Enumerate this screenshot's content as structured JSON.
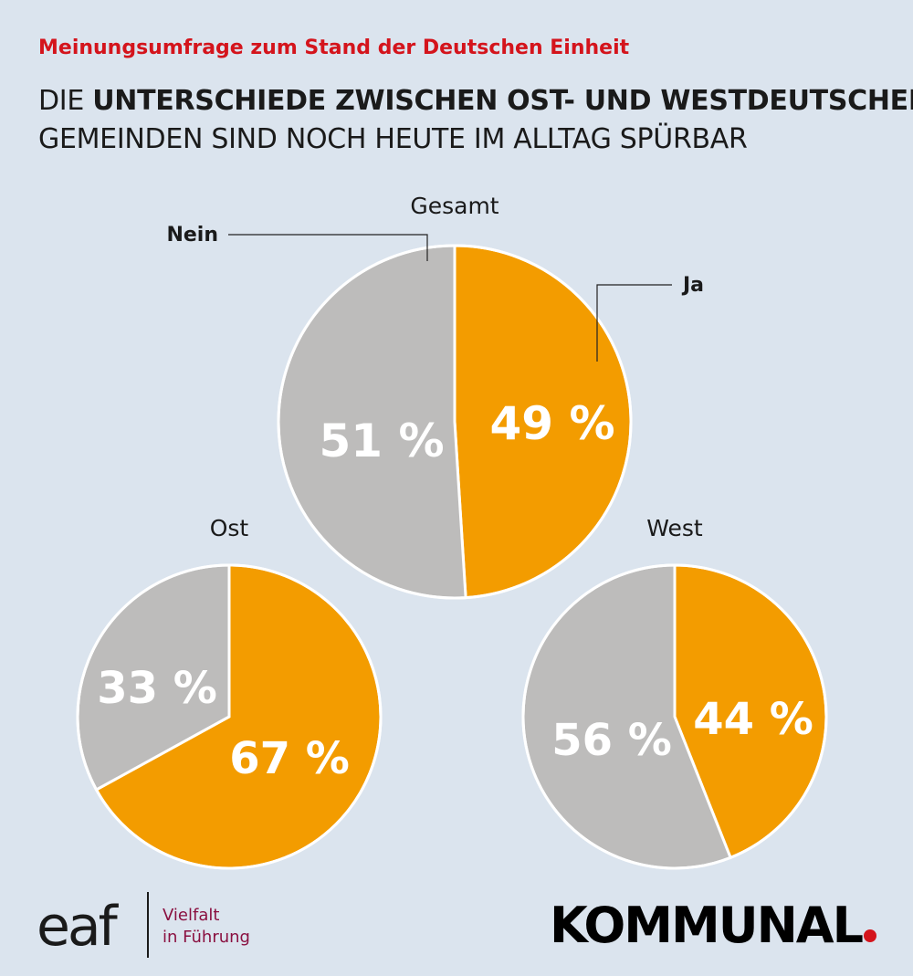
{
  "header": {
    "kicker": "Meinungsumfrage zum Stand der Deutschen Einheit",
    "headline_prefix": "DIE ",
    "headline_bold": "UNTERSCHIEDE ZWISCHEN OST- UND WESTDEUTSCHEN",
    "headline_line2": "GEMEINDEN SIND NOCH HEUTE IM ALLTAG SPÜRBAR"
  },
  "colors": {
    "ja": "#f39c00",
    "nein": "#bdbcbb",
    "background": "#dbe4ee",
    "accent": "#d4141c"
  },
  "chart_data": {
    "type": "pie",
    "legend": {
      "ja": "Ja",
      "nein": "Nein"
    },
    "series": [
      {
        "name": "Gesamt",
        "ja": 49,
        "nein": 51,
        "ja_label": "49 %",
        "nein_label": "51 %"
      },
      {
        "name": "Ost",
        "ja": 67,
        "nein": 33,
        "ja_label": "67 %",
        "nein_label": "33 %"
      },
      {
        "name": "West",
        "ja": 44,
        "nein": 56,
        "ja_label": "44 %",
        "nein_label": "56 %"
      }
    ]
  },
  "footer": {
    "eaf_logo": "eaf",
    "eaf_tagline_1": "Vielfalt",
    "eaf_tagline_2": "in Führung",
    "kommunal_logo": "KOMMUNAL"
  }
}
